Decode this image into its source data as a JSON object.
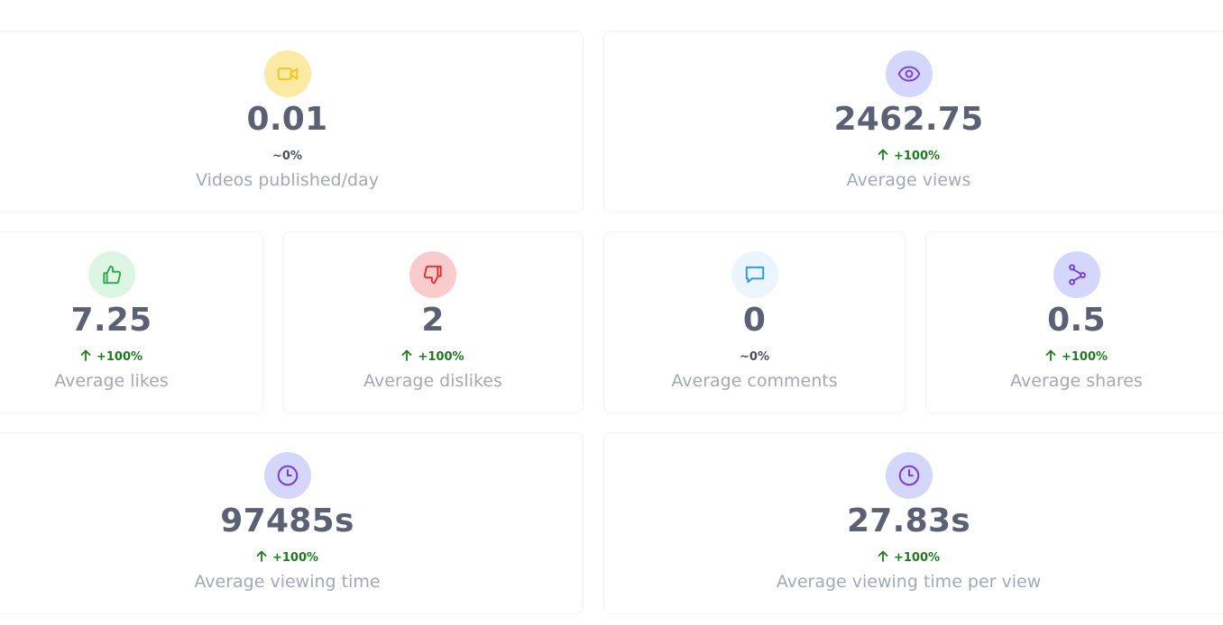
{
  "cards": [
    {
      "icon": "video-camera-icon",
      "icon_bg": "#fbeaa3",
      "icon_color": "#f5c518",
      "value": "0.01",
      "change": "~0%",
      "change_trend": "neutral",
      "label": "Videos published/day"
    },
    {
      "icon": "eye-icon",
      "icon_bg": "#d4d7fb",
      "icon_color": "#7b3fd6",
      "value": "2462.75",
      "change": "+100%",
      "change_trend": "up",
      "label": "Average views"
    },
    {
      "icon": "thumbs-up-icon",
      "icon_bg": "#ddf6e4",
      "icon_color": "#2fa84f",
      "value": "7.25",
      "change": "+100%",
      "change_trend": "up",
      "label": "Average likes"
    },
    {
      "icon": "thumbs-down-icon",
      "icon_bg": "#f8cccc",
      "icon_color": "#e03131",
      "value": "2",
      "change": "+100%",
      "change_trend": "up",
      "label": "Average dislikes"
    },
    {
      "icon": "comment-icon",
      "icon_bg": "#eaf5fd",
      "icon_color": "#2d9be0",
      "value": "0",
      "change": "~0%",
      "change_trend": "neutral",
      "label": "Average comments"
    },
    {
      "icon": "share-icon",
      "icon_bg": "#d4d7fb",
      "icon_color": "#7b3fd6",
      "value": "0.5",
      "change": "+100%",
      "change_trend": "up",
      "label": "Average shares"
    },
    {
      "icon": "clock-icon",
      "icon_bg": "#d4d7fb",
      "icon_color": "#7b3fd6",
      "value": "97485s",
      "change": "+100%",
      "change_trend": "up",
      "label": "Average viewing time"
    },
    {
      "icon": "clock-icon",
      "icon_bg": "#d4d7fb",
      "icon_color": "#7b3fd6",
      "value": "27.83s",
      "change": "+100%",
      "change_trend": "up",
      "label": "Average viewing time per view"
    }
  ]
}
